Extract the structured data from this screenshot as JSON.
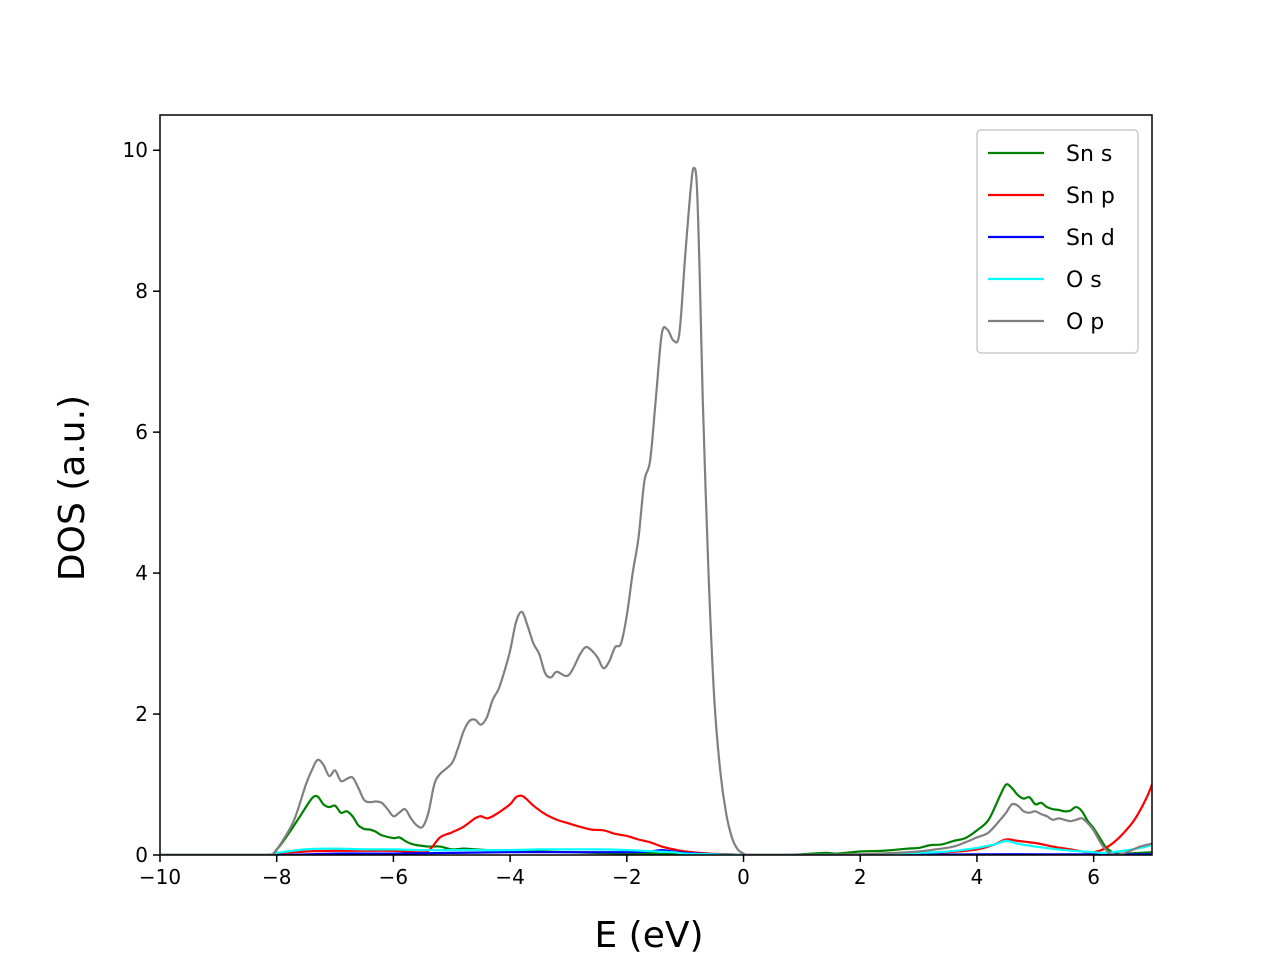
{
  "chart_data": {
    "type": "line",
    "xlabel": "E (eV)",
    "ylabel": "DOS (a.u.)",
    "xlim": [
      -10,
      7
    ],
    "ylim": [
      0,
      10.5
    ],
    "xticks": [
      -10,
      -8,
      -6,
      -4,
      -2,
      0,
      2,
      4,
      6
    ],
    "xtick_labels": [
      "−10",
      "−8",
      "−6",
      "−4",
      "−2",
      "0",
      "2",
      "4",
      "6"
    ],
    "yticks": [
      0,
      2,
      4,
      6,
      8,
      10
    ],
    "ytick_labels": [
      "0",
      "2",
      "4",
      "6",
      "8",
      "10"
    ],
    "grid": false,
    "legend": "top-right",
    "series": [
      {
        "name": "Sn s",
        "color": "#008000",
        "x": [
          -10,
          -8.2,
          -8.0,
          -7.8,
          -7.6,
          -7.4,
          -7.3,
          -7.2,
          -7.1,
          -7.0,
          -6.9,
          -6.8,
          -6.7,
          -6.6,
          -6.5,
          -6.4,
          -6.3,
          -6.2,
          -6.0,
          -5.9,
          -5.8,
          -5.7,
          -5.6,
          -5.4,
          -5.2,
          -5.0,
          -4.8,
          -4.6,
          -4.4,
          -4.2,
          -4.0,
          -3.5,
          -3.0,
          -2.5,
          -2.0,
          -1.5,
          -1.0,
          -0.5,
          0,
          0.5,
          1.0,
          1.4,
          1.6,
          2.0,
          2.4,
          2.8,
          3.0,
          3.2,
          3.4,
          3.6,
          3.8,
          4.0,
          4.2,
          4.4,
          4.5,
          4.6,
          4.7,
          4.8,
          4.9,
          5.0,
          5.1,
          5.2,
          5.3,
          5.4,
          5.5,
          5.6,
          5.7,
          5.8,
          5.9,
          6.0,
          6.1,
          6.2,
          6.3,
          6.4,
          6.6,
          6.8,
          7.0
        ],
        "values": [
          0,
          0,
          0.08,
          0.3,
          0.55,
          0.8,
          0.83,
          0.72,
          0.68,
          0.7,
          0.6,
          0.62,
          0.55,
          0.42,
          0.37,
          0.36,
          0.33,
          0.28,
          0.24,
          0.25,
          0.2,
          0.16,
          0.14,
          0.12,
          0.12,
          0.08,
          0.09,
          0.08,
          0.07,
          0.07,
          0.06,
          0.05,
          0.04,
          0.03,
          0.02,
          0.02,
          0.01,
          0.01,
          0,
          0,
          0.01,
          0.03,
          0.02,
          0.05,
          0.06,
          0.09,
          0.1,
          0.14,
          0.15,
          0.2,
          0.24,
          0.35,
          0.5,
          0.85,
          1.0,
          0.95,
          0.85,
          0.8,
          0.82,
          0.72,
          0.74,
          0.68,
          0.65,
          0.64,
          0.62,
          0.63,
          0.68,
          0.62,
          0.48,
          0.38,
          0.25,
          0.12,
          0.05,
          0.02,
          0.02,
          0.03,
          0.04
        ]
      },
      {
        "name": "Sn p",
        "color": "#ff0000",
        "x": [
          -10,
          -8.2,
          -8.0,
          -7.5,
          -7.0,
          -6.5,
          -6.0,
          -5.6,
          -5.4,
          -5.2,
          -5.0,
          -4.8,
          -4.6,
          -4.5,
          -4.4,
          -4.3,
          -4.2,
          -4.0,
          -3.9,
          -3.8,
          -3.7,
          -3.6,
          -3.4,
          -3.2,
          -3.0,
          -2.8,
          -2.6,
          -2.4,
          -2.2,
          -2.0,
          -1.8,
          -1.6,
          -1.4,
          -1.2,
          -1.0,
          -0.6,
          -0.2,
          0,
          1.0,
          2.0,
          3.0,
          3.5,
          4.0,
          4.3,
          4.5,
          4.7,
          5.0,
          5.3,
          5.6,
          5.9,
          6.1,
          6.3,
          6.5,
          6.7,
          6.9,
          7.0
        ],
        "values": [
          0,
          0,
          0.02,
          0.05,
          0.06,
          0.06,
          0.06,
          0.04,
          0.06,
          0.25,
          0.32,
          0.4,
          0.52,
          0.55,
          0.52,
          0.55,
          0.6,
          0.72,
          0.82,
          0.84,
          0.78,
          0.7,
          0.58,
          0.5,
          0.45,
          0.4,
          0.36,
          0.35,
          0.3,
          0.27,
          0.22,
          0.18,
          0.12,
          0.08,
          0.05,
          0.02,
          0.01,
          0,
          0,
          0.01,
          0.02,
          0.04,
          0.08,
          0.15,
          0.22,
          0.2,
          0.17,
          0.12,
          0.08,
          0.04,
          0.06,
          0.15,
          0.3,
          0.5,
          0.8,
          1.0
        ]
      },
      {
        "name": "Sn d",
        "color": "#0000ff",
        "x": [
          -10,
          -8.0,
          -7.0,
          -6.0,
          -5.0,
          -4.0,
          -3.0,
          -2.0,
          -1.6,
          -1.4,
          -1.2,
          -1.0,
          -0.5,
          0,
          2.0,
          4.0,
          5.0,
          6.0,
          7.0
        ],
        "values": [
          0,
          0,
          0.02,
          0.02,
          0.03,
          0.04,
          0.04,
          0.04,
          0.05,
          0.07,
          0.05,
          0.03,
          0.01,
          0,
          0,
          0.01,
          0.01,
          0.01,
          0.01
        ]
      },
      {
        "name": "O s",
        "color": "#00ffff",
        "x": [
          -10,
          -8.2,
          -8.0,
          -7.5,
          -7.0,
          -6.5,
          -6.0,
          -5.5,
          -5.0,
          -4.5,
          -4.0,
          -3.5,
          -3.0,
          -2.5,
          -2.0,
          -1.5,
          -1.2,
          -1.0,
          -0.5,
          0,
          1.0,
          2.0,
          3.0,
          3.5,
          4.0,
          4.3,
          4.5,
          4.7,
          5.0,
          5.5,
          6.0,
          6.2,
          6.5,
          6.8,
          7.0
        ],
        "values": [
          0,
          0,
          0.03,
          0.08,
          0.09,
          0.08,
          0.08,
          0.07,
          0.07,
          0.07,
          0.07,
          0.08,
          0.08,
          0.08,
          0.07,
          0.05,
          0.04,
          0.02,
          0.01,
          0,
          0,
          0.01,
          0.03,
          0.05,
          0.1,
          0.15,
          0.2,
          0.16,
          0.12,
          0.07,
          0.04,
          0.03,
          0.06,
          0.1,
          0.14
        ]
      },
      {
        "name": "O p",
        "color": "#808080",
        "x": [
          -10,
          -8.2,
          -8.05,
          -7.9,
          -7.7,
          -7.5,
          -7.4,
          -7.3,
          -7.2,
          -7.1,
          -7.0,
          -6.9,
          -6.8,
          -6.7,
          -6.6,
          -6.5,
          -6.4,
          -6.3,
          -6.2,
          -6.1,
          -6.0,
          -5.9,
          -5.8,
          -5.7,
          -5.6,
          -5.5,
          -5.4,
          -5.3,
          -5.2,
          -5.0,
          -4.9,
          -4.8,
          -4.7,
          -4.6,
          -4.5,
          -4.4,
          -4.3,
          -4.2,
          -4.1,
          -4.0,
          -3.9,
          -3.8,
          -3.7,
          -3.6,
          -3.5,
          -3.4,
          -3.3,
          -3.2,
          -3.0,
          -2.8,
          -2.7,
          -2.6,
          -2.5,
          -2.4,
          -2.3,
          -2.2,
          -2.1,
          -2.0,
          -1.9,
          -1.8,
          -1.7,
          -1.6,
          -1.5,
          -1.4,
          -1.3,
          -1.2,
          -1.1,
          -1.0,
          -0.9,
          -0.85,
          -0.8,
          -0.75,
          -0.7,
          -0.6,
          -0.5,
          -0.4,
          -0.3,
          -0.2,
          -0.1,
          0,
          0.05,
          0.1,
          1.0,
          2.0,
          2.6,
          3.0,
          3.3,
          3.6,
          3.8,
          4.0,
          4.2,
          4.4,
          4.5,
          4.6,
          4.7,
          4.8,
          4.9,
          5.0,
          5.1,
          5.2,
          5.3,
          5.4,
          5.5,
          5.6,
          5.7,
          5.8,
          5.9,
          6.0,
          6.1,
          6.2,
          6.3,
          6.4,
          6.6,
          6.8,
          7.0
        ],
        "values": [
          0,
          0,
          0.03,
          0.2,
          0.5,
          1.0,
          1.2,
          1.35,
          1.28,
          1.12,
          1.2,
          1.05,
          1.08,
          1.1,
          0.95,
          0.78,
          0.75,
          0.76,
          0.74,
          0.65,
          0.55,
          0.6,
          0.65,
          0.52,
          0.42,
          0.4,
          0.6,
          1.0,
          1.15,
          1.3,
          1.5,
          1.75,
          1.9,
          1.92,
          1.85,
          1.95,
          2.2,
          2.35,
          2.6,
          2.9,
          3.3,
          3.45,
          3.25,
          3.0,
          2.85,
          2.58,
          2.52,
          2.6,
          2.55,
          2.85,
          2.95,
          2.9,
          2.8,
          2.65,
          2.75,
          2.95,
          3.0,
          3.4,
          4.0,
          4.5,
          5.3,
          5.6,
          6.5,
          7.4,
          7.45,
          7.3,
          7.4,
          8.5,
          9.5,
          9.75,
          9.5,
          8.2,
          6.5,
          4.0,
          2.2,
          1.2,
          0.6,
          0.25,
          0.08,
          0.02,
          0,
          0,
          0,
          0.01,
          0.03,
          0.05,
          0.08,
          0.12,
          0.18,
          0.25,
          0.32,
          0.5,
          0.6,
          0.72,
          0.7,
          0.62,
          0.6,
          0.62,
          0.58,
          0.55,
          0.5,
          0.52,
          0.5,
          0.48,
          0.5,
          0.52,
          0.45,
          0.35,
          0.2,
          0.08,
          0.02,
          0,
          0.05,
          0.12,
          0.16
        ]
      }
    ]
  }
}
